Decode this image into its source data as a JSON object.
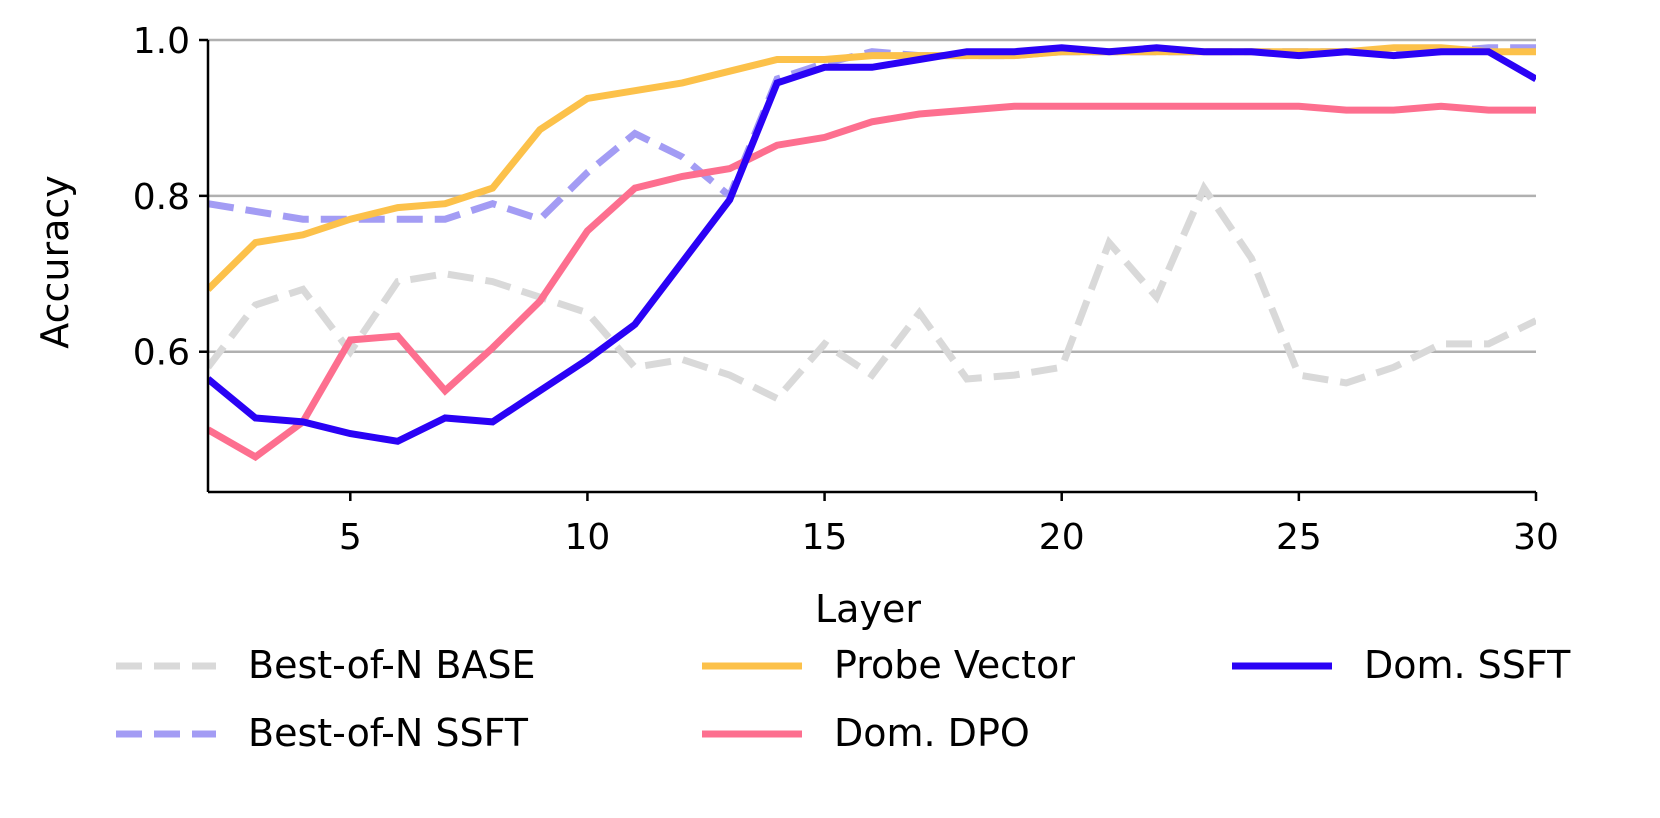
{
  "chart_data": {
    "type": "line",
    "title": "",
    "xlabel": "Layer",
    "ylabel": "Accuracy",
    "xlim": [
      2,
      30
    ],
    "ylim": [
      0.42,
      1.0
    ],
    "xticks": [
      5,
      10,
      15,
      20,
      25,
      30
    ],
    "yticks": [
      0.6,
      0.8,
      1.0
    ],
    "ytick_labels": [
      "0.6",
      "0.8",
      "1.0"
    ],
    "grid": "horizontal",
    "legend_position": "bottom, 3 columns",
    "x": [
      2,
      3,
      4,
      5,
      6,
      7,
      8,
      9,
      10,
      11,
      12,
      13,
      14,
      15,
      16,
      17,
      18,
      19,
      20,
      21,
      22,
      23,
      24,
      25,
      26,
      27,
      28,
      29,
      30
    ],
    "series": [
      {
        "name": "Best-of-N BASE",
        "color": "#d9d9d9",
        "style": "dashed",
        "values": [
          0.58,
          0.66,
          0.68,
          0.6,
          0.69,
          0.7,
          0.69,
          0.67,
          0.65,
          0.58,
          0.59,
          0.57,
          0.54,
          0.61,
          0.57,
          0.65,
          0.565,
          0.57,
          0.58,
          0.74,
          0.67,
          0.81,
          0.72,
          0.57,
          0.56,
          0.58,
          0.61,
          0.61,
          0.64
        ]
      },
      {
        "name": "Best-of-N SSFT",
        "color": "#a39cf4",
        "style": "dashed",
        "values": [
          0.79,
          0.78,
          0.77,
          0.77,
          0.77,
          0.77,
          0.79,
          0.77,
          0.83,
          0.88,
          0.85,
          0.8,
          0.95,
          0.97,
          0.985,
          0.98,
          0.98,
          0.98,
          0.985,
          0.985,
          0.985,
          0.985,
          0.985,
          0.985,
          0.985,
          0.985,
          0.985,
          0.99,
          0.99
        ]
      },
      {
        "name": "Probe Vector",
        "color": "#fcc14a",
        "style": "solid",
        "values": [
          0.68,
          0.74,
          0.75,
          0.77,
          0.785,
          0.79,
          0.81,
          0.885,
          0.925,
          0.935,
          0.945,
          0.96,
          0.975,
          0.975,
          0.98,
          0.98,
          0.98,
          0.98,
          0.985,
          0.985,
          0.985,
          0.985,
          0.985,
          0.985,
          0.985,
          0.99,
          0.99,
          0.985,
          0.985
        ]
      },
      {
        "name": "Dom. DPO",
        "color": "#fd6f8f",
        "style": "solid",
        "values": [
          0.5,
          0.465,
          0.51,
          0.615,
          0.62,
          0.55,
          0.605,
          0.665,
          0.755,
          0.81,
          0.825,
          0.835,
          0.865,
          0.875,
          0.895,
          0.905,
          0.91,
          0.915,
          0.915,
          0.915,
          0.915,
          0.915,
          0.915,
          0.915,
          0.91,
          0.91,
          0.915,
          0.91,
          0.91
        ]
      },
      {
        "name": "Dom. SSFT",
        "color": "#2a02f5",
        "style": "solid",
        "values": [
          0.565,
          0.515,
          0.51,
          0.495,
          0.485,
          0.515,
          0.51,
          0.55,
          0.59,
          0.635,
          0.715,
          0.795,
          0.945,
          0.965,
          0.965,
          0.975,
          0.985,
          0.985,
          0.99,
          0.985,
          0.99,
          0.985,
          0.985,
          0.98,
          0.985,
          0.98,
          0.985,
          0.985,
          0.95
        ]
      }
    ]
  }
}
